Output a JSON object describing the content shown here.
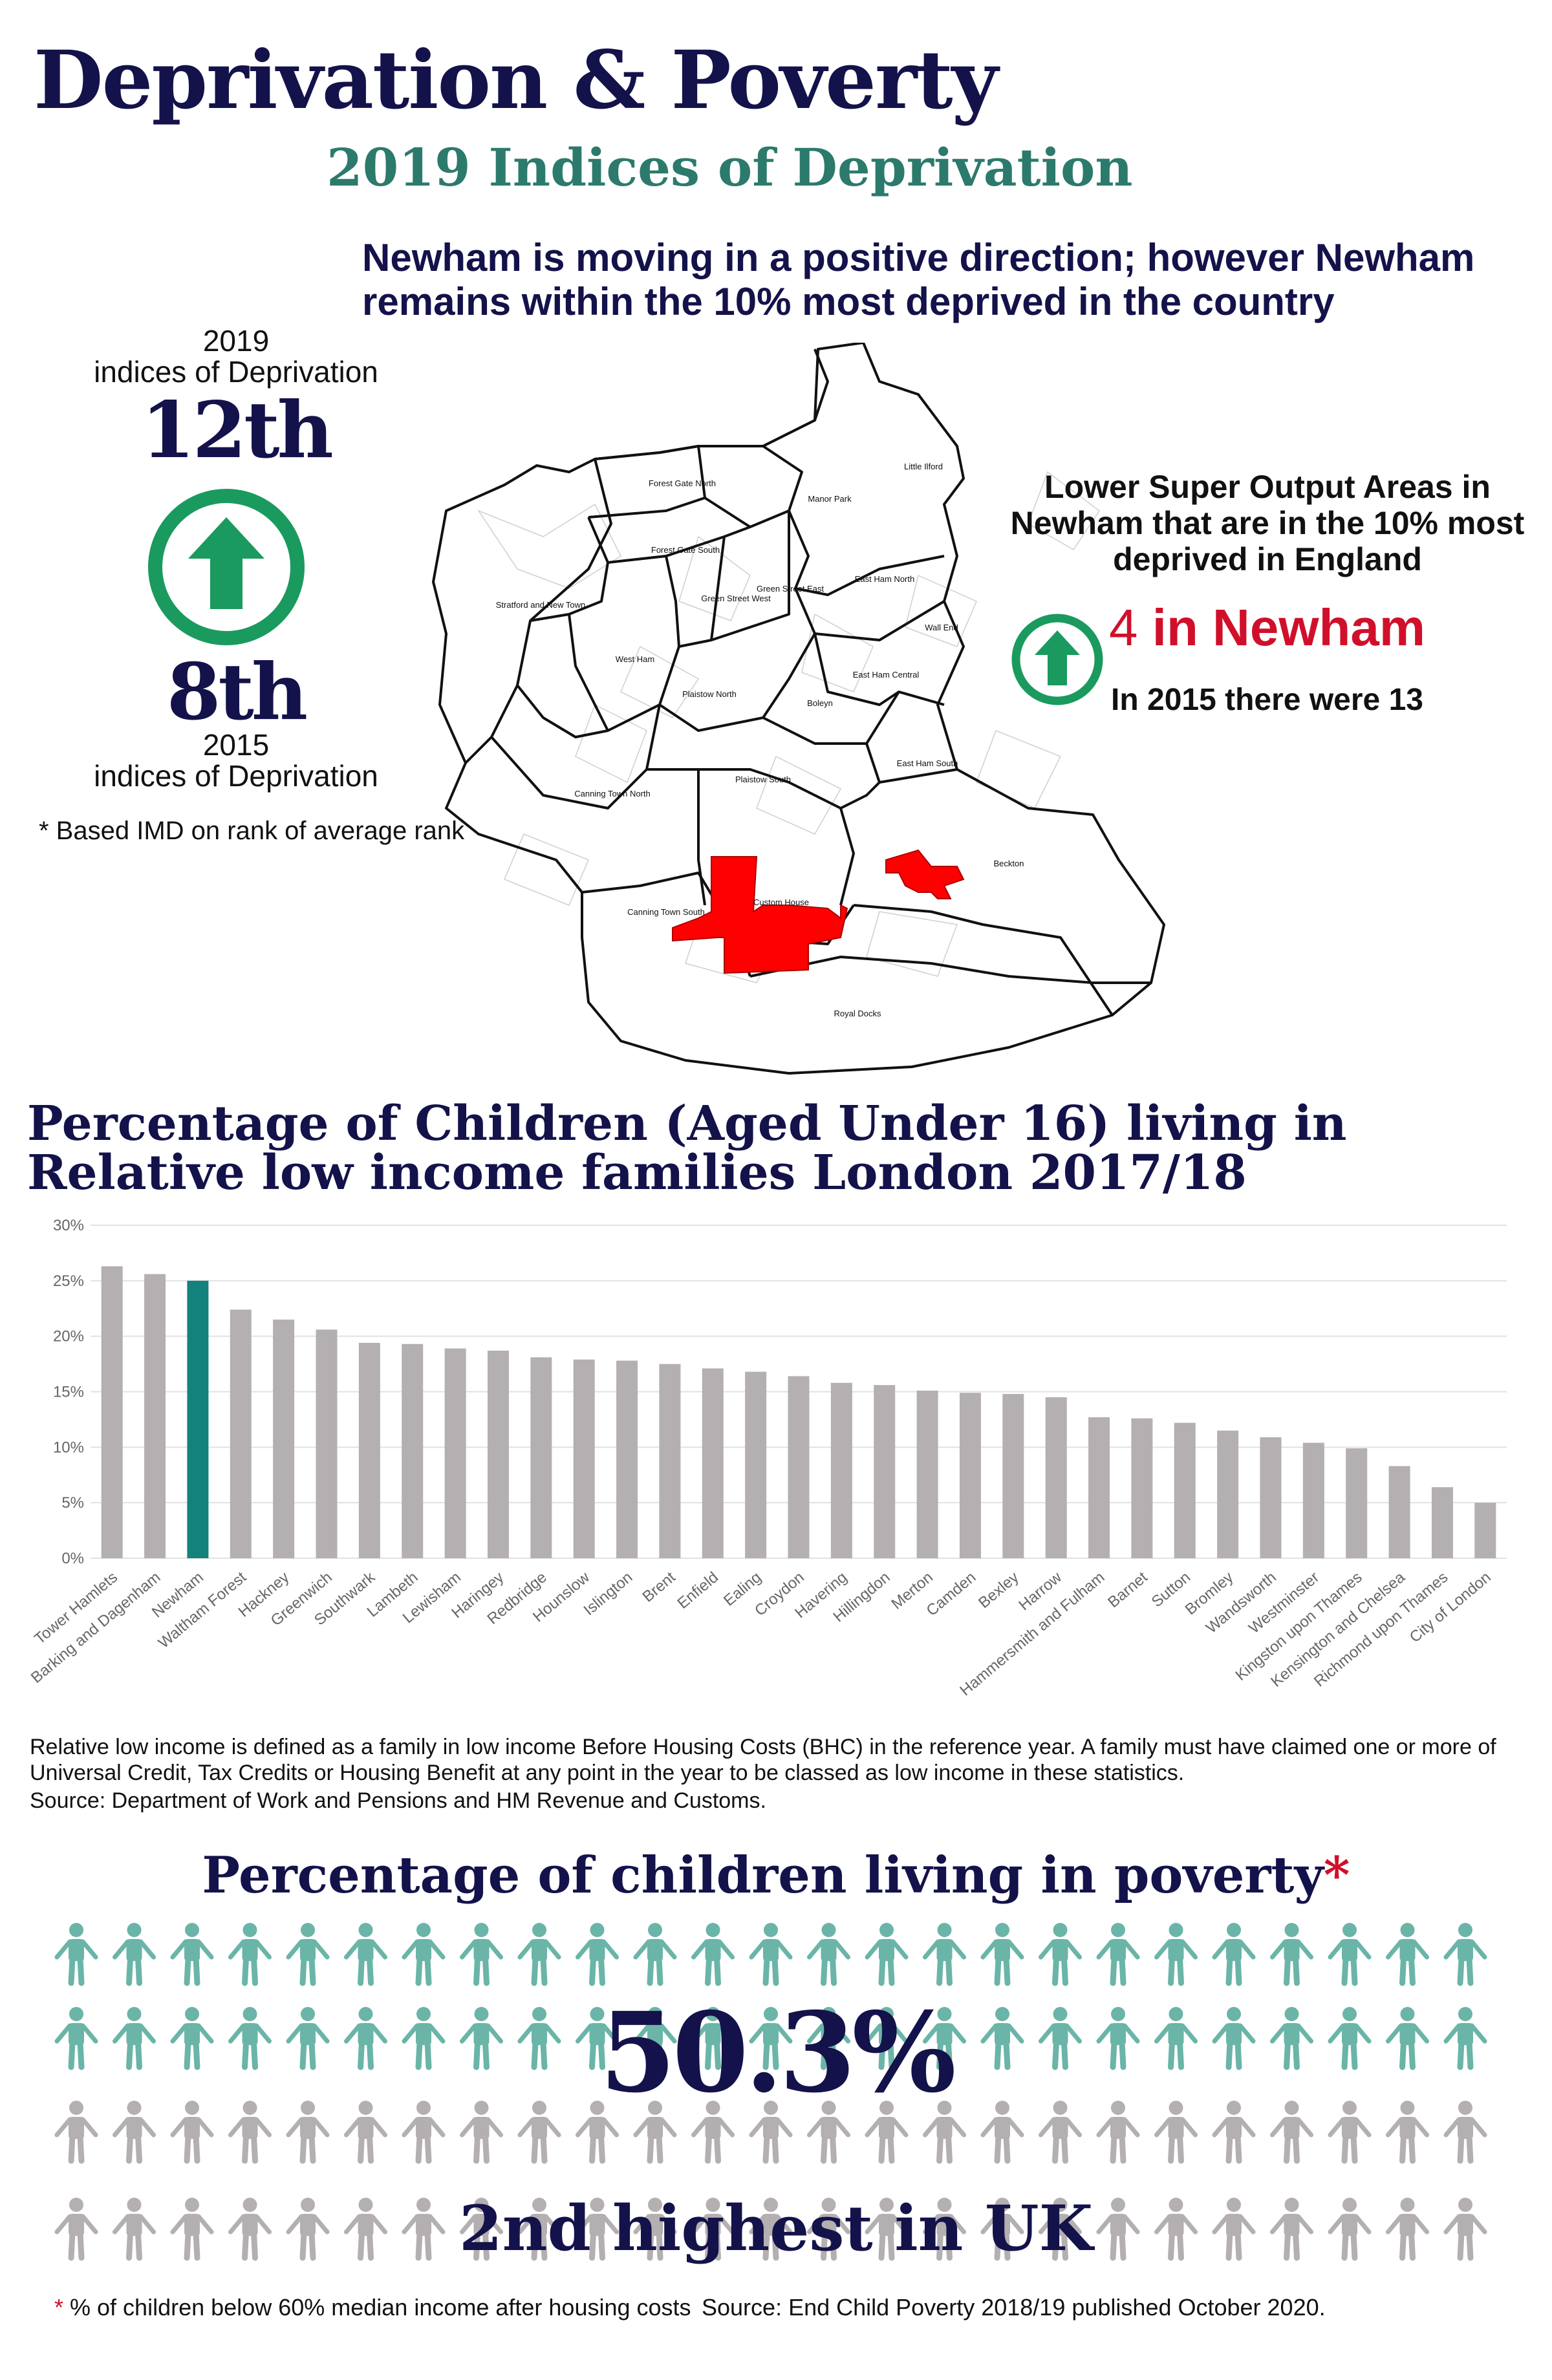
{
  "header": {
    "title": "Deprivation & Poverty",
    "subtitle": "2019 Indices of Deprivation",
    "intro": "Newham is moving in a positive direction; however Newham remains within the 10% most deprived in the country"
  },
  "ranks": {
    "label_2019_year": "2019",
    "label_2019_text": "indices of Deprivation",
    "rank_2019": "12th",
    "rank_2015": "8th",
    "label_2015_year": "2015",
    "label_2015_text": "indices of Deprivation",
    "note": "* Based IMD on rank of average rank",
    "icon": "arrow-up-icon",
    "accent_color": "#1a9a5e"
  },
  "lsoa": {
    "title": "Lower Super Output Areas in Newham that are in the 10% most deprived in England",
    "count_number": "4",
    "count_text": " in Newham",
    "note_2015": "In 2015 there were 13",
    "highlight_color": "#ff0000"
  },
  "map": {
    "wards": [
      "Little Ilford",
      "Forest Gate North",
      "Manor Park",
      "Forest Gate South",
      "Stratford and New Town",
      "Green Street West",
      "Green Street East",
      "East Ham North",
      "Wall End",
      "West Ham",
      "Plaistow North",
      "Boleyn",
      "East Ham Central",
      "East Ham South",
      "Plaistow South",
      "Canning Town North",
      "Beckton",
      "Custom House",
      "Canning Town South",
      "Royal Docks"
    ]
  },
  "chart_data": {
    "type": "bar",
    "title": "Percentage of Children (Aged Under 16) living in Relative low income families London 2017/18",
    "categories": [
      "Tower Hamlets",
      "Barking and Dagenham",
      "Newham",
      "Waltham Forest",
      "Hackney",
      "Greenwich",
      "Southwark",
      "Lambeth",
      "Lewisham",
      "Haringey",
      "Redbridge",
      "Hounslow",
      "Islington",
      "Brent",
      "Enfield",
      "Ealing",
      "Croydon",
      "Havering",
      "Hillingdon",
      "Merton",
      "Camden",
      "Bexley",
      "Harrow",
      "Hammersmith and Fulham",
      "Barnet",
      "Sutton",
      "Bromley",
      "Wandsworth",
      "Westminster",
      "Kingston upon Thames",
      "Kensington and Chelsea",
      "Richmond upon Thames",
      "City of London"
    ],
    "values": [
      26.3,
      25.6,
      25.0,
      22.4,
      21.5,
      20.6,
      19.4,
      19.3,
      18.9,
      18.7,
      18.1,
      17.9,
      17.8,
      17.5,
      17.1,
      16.8,
      16.4,
      15.8,
      15.6,
      15.1,
      14.9,
      14.8,
      14.5,
      12.7,
      12.6,
      12.2,
      11.5,
      10.9,
      10.4,
      9.9,
      8.3,
      6.4,
      5.0
    ],
    "ylim": [
      0,
      30
    ],
    "yticks": [
      "0%",
      "5%",
      "10%",
      "15%",
      "20%",
      "25%",
      "30%"
    ],
    "highlight": "Newham",
    "bar_color": "#b4afb0",
    "highlight_color": "#13827c",
    "grid": true
  },
  "chart_notes": {
    "definition": "Relative low income is defined as a family in low income Before Housing Costs (BHC) in the reference year. A family must have claimed one or more of Universal Credit, Tax Credits or Housing Benefit at any point in the year to be classed as low income in these statistics.",
    "source": "Source: Department of Work and Pensions and HM Revenue and Customs."
  },
  "poverty": {
    "title": "Percentage of children living in poverty",
    "star": "*",
    "percent": "50.3%",
    "rank": "2nd highest in UK",
    "icon": "child-icon",
    "icon_color_filled": "#6ab5a7",
    "icon_color_empty": "#b4afb0",
    "footnote_star": "*",
    "footnote": " % of children below 60% median income after housing costs",
    "source": "Source: End Child Poverty 2018/19 published October 2020."
  }
}
